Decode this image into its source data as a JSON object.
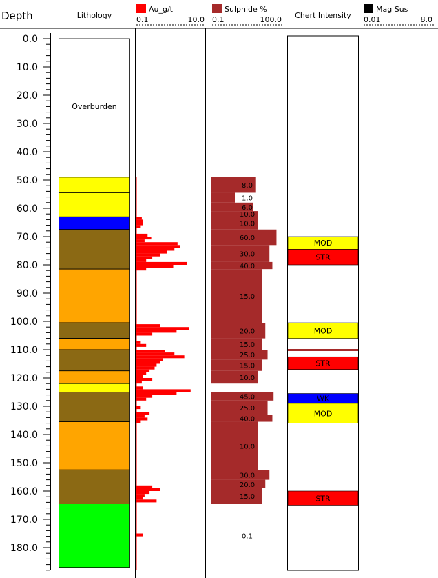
{
  "chart_data": {
    "type": "bar",
    "y_unit_label": "Depth",
    "depth_range": [
      0.0,
      186.0
    ],
    "depth_ticks": [
      "0.0",
      "10.0",
      "20.0",
      "30.0",
      "40.0",
      "50.0",
      "60.0",
      "70.0",
      "80.0",
      "90.0",
      "100.0",
      "110.0",
      "120.0",
      "130.0",
      "140.0",
      "150.0",
      "160.0",
      "170.0",
      "180.0"
    ],
    "lithology": {
      "header": "Lithology",
      "colors": {
        "overburden": "#ffffff",
        "yellow": "#ffff00",
        "blue": "#0000ff",
        "brown": "#8b6914",
        "orange": "#ffa500",
        "green": "#00ff00"
      },
      "intervals": [
        {
          "from": 0,
          "to": 49,
          "type": "overburden",
          "label": "Overburden"
        },
        {
          "from": 49,
          "to": 54.5,
          "type": "yellow"
        },
        {
          "from": 54.5,
          "to": 63,
          "type": "yellow"
        },
        {
          "from": 63,
          "to": 67.5,
          "type": "blue"
        },
        {
          "from": 67.5,
          "to": 81.5,
          "type": "brown"
        },
        {
          "from": 81.5,
          "to": 100.5,
          "type": "orange"
        },
        {
          "from": 100.5,
          "to": 106,
          "type": "brown"
        },
        {
          "from": 106,
          "to": 110,
          "type": "orange"
        },
        {
          "from": 110,
          "to": 117.5,
          "type": "brown"
        },
        {
          "from": 117.5,
          "to": 122,
          "type": "orange"
        },
        {
          "from": 122,
          "to": 125,
          "type": "yellow"
        },
        {
          "from": 125,
          "to": 135.5,
          "type": "brown"
        },
        {
          "from": 135.5,
          "to": 152.5,
          "type": "orange"
        },
        {
          "from": 152.5,
          "to": 164.5,
          "type": "brown"
        },
        {
          "from": 164.5,
          "to": 187,
          "type": "green"
        }
      ]
    },
    "au": {
      "legend": "Au_g/t",
      "color": "#ff0000",
      "scale": "log",
      "min_label": "0.1",
      "max_label": "10.0",
      "min": 0.1,
      "max": 10.0,
      "intervals": [
        {
          "from": 63,
          "to": 64,
          "value": 0.15
        },
        {
          "from": 64,
          "to": 66,
          "value": 0.16
        },
        {
          "from": 66,
          "to": 67,
          "value": 0.14
        },
        {
          "from": 69,
          "to": 70,
          "value": 0.22
        },
        {
          "from": 70,
          "to": 71,
          "value": 0.28
        },
        {
          "from": 71,
          "to": 72,
          "value": 0.18
        },
        {
          "from": 72,
          "to": 73,
          "value": 1.6
        },
        {
          "from": 73,
          "to": 74,
          "value": 1.9
        },
        {
          "from": 74,
          "to": 75,
          "value": 1.3
        },
        {
          "from": 75,
          "to": 76,
          "value": 0.8
        },
        {
          "from": 76,
          "to": 77,
          "value": 0.5
        },
        {
          "from": 77,
          "to": 78,
          "value": 0.3
        },
        {
          "from": 78,
          "to": 79,
          "value": 0.2
        },
        {
          "from": 79,
          "to": 80,
          "value": 3.0
        },
        {
          "from": 80,
          "to": 81,
          "value": 1.2
        },
        {
          "from": 81,
          "to": 82,
          "value": 0.2
        },
        {
          "from": 101,
          "to": 102,
          "value": 0.5
        },
        {
          "from": 102,
          "to": 103,
          "value": 3.5
        },
        {
          "from": 103,
          "to": 104,
          "value": 1.5
        },
        {
          "from": 104,
          "to": 105,
          "value": 0.3
        },
        {
          "from": 107,
          "to": 108,
          "value": 0.14
        },
        {
          "from": 108,
          "to": 109,
          "value": 0.2
        },
        {
          "from": 110,
          "to": 111,
          "value": 0.7
        },
        {
          "from": 111,
          "to": 112,
          "value": 1.3
        },
        {
          "from": 112,
          "to": 113,
          "value": 2.5
        },
        {
          "from": 113,
          "to": 114,
          "value": 0.6
        },
        {
          "from": 114,
          "to": 115,
          "value": 0.5
        },
        {
          "from": 115,
          "to": 116,
          "value": 0.4
        },
        {
          "from": 116,
          "to": 117,
          "value": 0.35
        },
        {
          "from": 117,
          "to": 118,
          "value": 0.25
        },
        {
          "from": 118,
          "to": 119,
          "value": 0.2
        },
        {
          "from": 119,
          "to": 120,
          "value": 0.16
        },
        {
          "from": 120,
          "to": 121,
          "value": 0.3
        },
        {
          "from": 121,
          "to": 122,
          "value": 0.15
        },
        {
          "from": 123,
          "to": 124,
          "value": 0.16
        },
        {
          "from": 124,
          "to": 125,
          "value": 3.8
        },
        {
          "from": 125,
          "to": 126,
          "value": 1.5
        },
        {
          "from": 126,
          "to": 127,
          "value": 0.3
        },
        {
          "from": 127,
          "to": 128,
          "value": 0.2
        },
        {
          "from": 130,
          "to": 131,
          "value": 0.14
        },
        {
          "from": 132,
          "to": 133,
          "value": 0.25
        },
        {
          "from": 133,
          "to": 134,
          "value": 0.18
        },
        {
          "from": 134,
          "to": 135,
          "value": 0.22
        },
        {
          "from": 135,
          "to": 136,
          "value": 0.14
        },
        {
          "from": 158,
          "to": 159,
          "value": 0.3
        },
        {
          "from": 159,
          "to": 160,
          "value": 0.5
        },
        {
          "from": 160,
          "to": 161,
          "value": 0.25
        },
        {
          "from": 161,
          "to": 162,
          "value": 0.18
        },
        {
          "from": 162,
          "to": 163,
          "value": 0.16
        },
        {
          "from": 163,
          "to": 164,
          "value": 0.4
        },
        {
          "from": 175,
          "to": 176,
          "value": 0.16
        }
      ]
    },
    "sulphide": {
      "legend": "Sulphide %",
      "color": "#a52a2a",
      "scale": "log",
      "min_label": "0.1",
      "max_label": "100.0",
      "min": 0.1,
      "max": 100.0,
      "intervals": [
        {
          "from": 49,
          "to": 54.5,
          "value": 8.0,
          "label": "8.0"
        },
        {
          "from": 54.5,
          "to": 58,
          "value": 1.0,
          "label": "1.0"
        },
        {
          "from": 58,
          "to": 61,
          "value": 6.0,
          "label": "6.0"
        },
        {
          "from": 61,
          "to": 63,
          "value": 10.0,
          "label": "10.0"
        },
        {
          "from": 63,
          "to": 67.5,
          "value": 10.0,
          "label": "10.0"
        },
        {
          "from": 67.5,
          "to": 73,
          "value": 60.0,
          "label": "60.0"
        },
        {
          "from": 73,
          "to": 79,
          "value": 30.0,
          "label": "30.0"
        },
        {
          "from": 79,
          "to": 81.5,
          "value": 40.0,
          "label": "40.0"
        },
        {
          "from": 81.5,
          "to": 100.5,
          "value": 15.0,
          "label": "15.0"
        },
        {
          "from": 100.5,
          "to": 106,
          "value": 20.0,
          "label": "20.0"
        },
        {
          "from": 106,
          "to": 110,
          "value": 15.0,
          "label": "15.0"
        },
        {
          "from": 110,
          "to": 113.5,
          "value": 25.0,
          "label": "25.0"
        },
        {
          "from": 113.5,
          "to": 117.5,
          "value": 15.0,
          "label": "15.0"
        },
        {
          "from": 117.5,
          "to": 122,
          "value": 10.0,
          "label": "10.0"
        },
        {
          "from": 125,
          "to": 128,
          "value": 45.0,
          "label": "45.0"
        },
        {
          "from": 128,
          "to": 133,
          "value": 25.0,
          "label": "25.0"
        },
        {
          "from": 133,
          "to": 135.5,
          "value": 40.0,
          "label": "40.0"
        },
        {
          "from": 135.5,
          "to": 152.5,
          "value": 10.0,
          "label": "10.0"
        },
        {
          "from": 152.5,
          "to": 156,
          "value": 30.0,
          "label": "30.0"
        },
        {
          "from": 156,
          "to": 159,
          "value": 20.0,
          "label": "20.0"
        },
        {
          "from": 159,
          "to": 164.5,
          "value": 15.0,
          "label": "15.0"
        },
        {
          "from": 164.5,
          "to": 187,
          "value": 0.1,
          "label": "0.1"
        }
      ]
    },
    "chert": {
      "header": "Chert Intensity",
      "colors": {
        "MOD": "#ffff00",
        "STR": "#ff0000",
        "WK": "#0000ff",
        "line": "#a52a2a"
      },
      "intervals": [
        {
          "from": 70,
          "to": 74.5,
          "level": "MOD",
          "label": "MOD"
        },
        {
          "from": 74.5,
          "to": 80,
          "level": "STR",
          "label": "STR"
        },
        {
          "from": 100.5,
          "to": 106,
          "level": "MOD",
          "label": "MOD"
        },
        {
          "from": 110,
          "to": 111,
          "level": "line",
          "label": ""
        },
        {
          "from": 112.5,
          "to": 117,
          "level": "STR",
          "label": "STR"
        },
        {
          "from": 125.5,
          "to": 129,
          "level": "WK",
          "label": "WK"
        },
        {
          "from": 129,
          "to": 136,
          "level": "MOD",
          "label": "MOD"
        },
        {
          "from": 160,
          "to": 165,
          "level": "STR",
          "label": "STR"
        }
      ]
    },
    "magsus": {
      "legend": "Mag Sus",
      "color": "#000000",
      "scale": "log",
      "min_label": "0.01",
      "max_label": "8.0",
      "min": 0.01,
      "max": 8.0,
      "intervals": []
    }
  }
}
